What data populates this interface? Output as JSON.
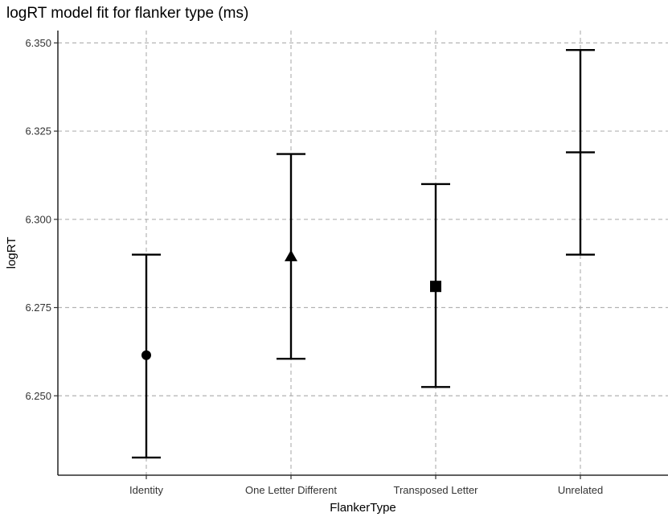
{
  "chart_data": {
    "type": "scatter",
    "title": "logRT model fit for flanker type (ms)",
    "xlabel": "FlankerType",
    "ylabel": "logRT",
    "categories": [
      "Identity",
      "One Letter Different",
      "Transposed Letter",
      "Unrelated"
    ],
    "estimates": [
      6.2615,
      6.2895,
      6.281,
      6.319
    ],
    "lower": [
      6.2325,
      6.2605,
      6.2525,
      6.29
    ],
    "upper": [
      6.29,
      6.3185,
      6.31,
      6.348
    ],
    "markers": [
      "circle",
      "triangle",
      "square",
      "none"
    ],
    "ylim": [
      6.2275,
      6.3535
    ],
    "yticks": [
      6.25,
      6.275,
      6.3,
      6.325,
      6.35
    ],
    "ytick_labels": [
      "6.250",
      "6.275",
      "6.300",
      "6.325",
      "6.350"
    ],
    "grid": true,
    "legend": "none"
  }
}
